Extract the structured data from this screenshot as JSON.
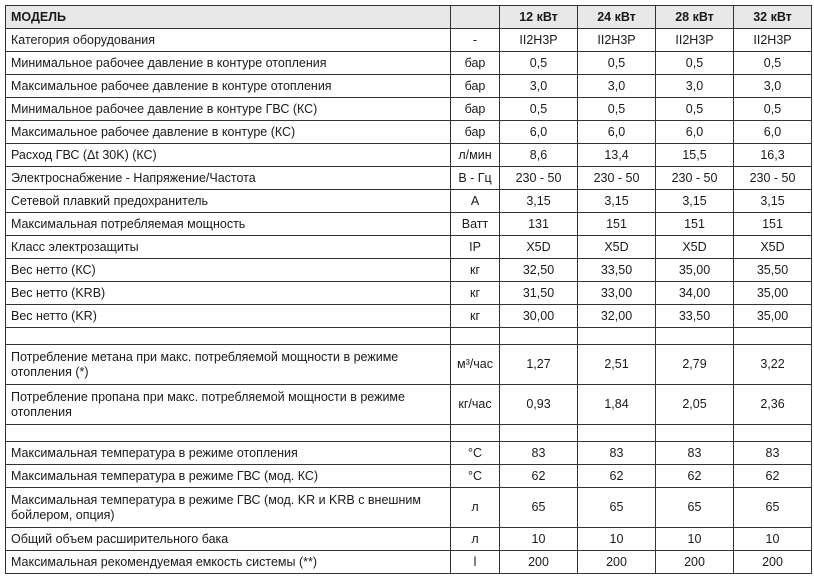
{
  "header": {
    "model": "МОДЕЛЬ",
    "unit": "",
    "columns": [
      "12 кВт",
      "24 кВт",
      "28 кВт",
      "32 кВт"
    ]
  },
  "rows": [
    {
      "label": "Категория оборудования",
      "unit": "-",
      "values": [
        "II2H3P",
        "II2H3P",
        "II2H3P",
        "II2H3P"
      ]
    },
    {
      "label": "Минимальное рабочее давление в контуре отопления",
      "unit": "бар",
      "values": [
        "0,5",
        "0,5",
        "0,5",
        "0,5"
      ]
    },
    {
      "label": "Максимальное рабочее давление в контуре отопления",
      "unit": "бар",
      "values": [
        "3,0",
        "3,0",
        "3,0",
        "3,0"
      ]
    },
    {
      "label": "Минимальное рабочее давление в контуре ГВС (КС)",
      "unit": "бар",
      "values": [
        "0,5",
        "0,5",
        "0,5",
        "0,5"
      ]
    },
    {
      "label": "Максимальное рабочее давление в контуре (КС)",
      "unit": "бар",
      "values": [
        "6,0",
        "6,0",
        "6,0",
        "6,0"
      ]
    },
    {
      "label": "Расход ГВС (Δt 30K) (КС)",
      "unit": "л/мин",
      "values": [
        "8,6",
        "13,4",
        "15,5",
        "16,3"
      ]
    },
    {
      "label": "Электроснабжение - Напряжение/Частота",
      "unit": "В - Гц",
      "values": [
        "230 - 50",
        "230 - 50",
        "230 - 50",
        "230 - 50"
      ]
    },
    {
      "label": "Сетевой плавкий предохранитель",
      "unit": "A",
      "values": [
        "3,15",
        "3,15",
        "3,15",
        "3,15"
      ]
    },
    {
      "label": "Максимальная потребляемая мощность",
      "unit": "Ватт",
      "values": [
        "131",
        "151",
        "151",
        "151"
      ]
    },
    {
      "label": "Класс электрозащиты",
      "unit": "IP",
      "values": [
        "X5D",
        "X5D",
        "X5D",
        "X5D"
      ]
    },
    {
      "label": "Вес нетто (КС)",
      "unit": "кг",
      "values": [
        "32,50",
        "33,50",
        "35,00",
        "35,50"
      ]
    },
    {
      "label": "Вес нетто (KRB)",
      "unit": "кг",
      "values": [
        "31,50",
        "33,00",
        "34,00",
        "35,00"
      ]
    },
    {
      "label": "Вес нетто (KR)",
      "unit": "кг",
      "values": [
        "30,00",
        "32,00",
        "33,50",
        "35,00"
      ]
    },
    {
      "empty": true
    },
    {
      "label": "Потребление метана при макс. потребляемой мощности в режиме отопления (*)",
      "unit": "м³/час",
      "values": [
        "1,27",
        "2,51",
        "2,79",
        "3,22"
      ],
      "two": true
    },
    {
      "label": "Потребление пропана при макс. потребляемой мощности в режиме отопления",
      "unit": "кг/час",
      "values": [
        "0,93",
        "1,84",
        "2,05",
        "2,36"
      ],
      "two": true
    },
    {
      "empty": true
    },
    {
      "label": "Максимальная температура в режиме отопления",
      "unit": "°C",
      "values": [
        "83",
        "83",
        "83",
        "83"
      ]
    },
    {
      "label": "Максимальная температура в режиме ГВС (мод. КС)",
      "unit": "°C",
      "values": [
        "62",
        "62",
        "62",
        "62"
      ]
    },
    {
      "label": "Максимальная температура в режиме ГВС (мод. KR и KRB с внешним бойлером, опция)",
      "unit": "л",
      "values": [
        "65",
        "65",
        "65",
        "65"
      ],
      "two": true
    },
    {
      "label": "Общий объем расширительного бака",
      "unit": "л",
      "values": [
        "10",
        "10",
        "10",
        "10"
      ]
    },
    {
      "label": "Максимальная рекомендуемая емкость системы (**)",
      "unit": "l",
      "values": [
        "200",
        "200",
        "200",
        "200"
      ]
    }
  ]
}
